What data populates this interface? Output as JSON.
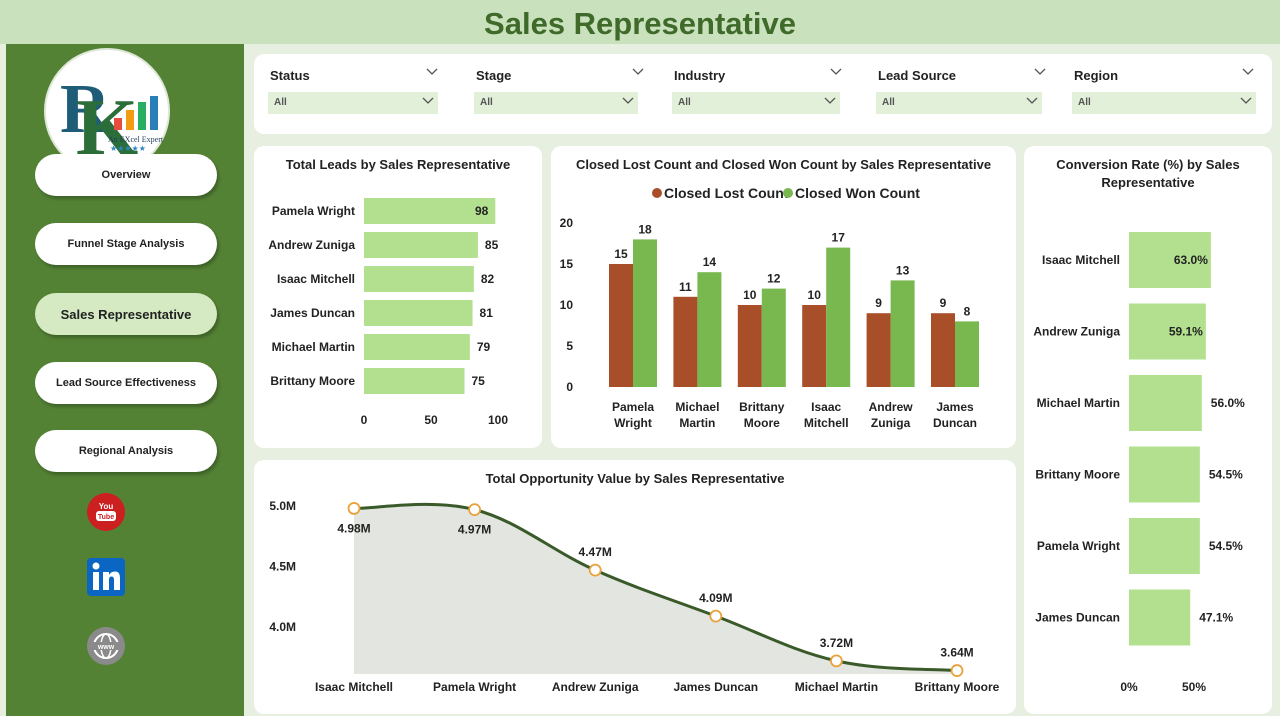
{
  "header": {
    "title": "Sales Representative"
  },
  "logo": {
    "text": "An EXcel Expert"
  },
  "nav": {
    "items": [
      {
        "label": "Overview"
      },
      {
        "label": "Funnel Stage Analysis"
      },
      {
        "label": "Sales Representative"
      },
      {
        "label": "Lead Source Effectiveness"
      },
      {
        "label": "Regional Analysis"
      }
    ]
  },
  "social": {
    "youtube": "youtube-icon",
    "linkedin": "linkedin-icon",
    "web": "globe-icon"
  },
  "filters": [
    {
      "label": "Status",
      "value": "All"
    },
    {
      "label": "Stage",
      "value": "All"
    },
    {
      "label": "Industry",
      "value": "All"
    },
    {
      "label": "Lead Source",
      "value": "All"
    },
    {
      "label": "Region",
      "value": "All"
    }
  ],
  "colors": {
    "accent": "#548235",
    "bar_light": "#b2e08f",
    "lost": "#a84f2a",
    "won": "#79b84f",
    "line": "#3a5a2a",
    "marker": "#e9a23b"
  },
  "chart_data": [
    {
      "type": "bar",
      "orientation": "horizontal",
      "title": "Total Leads by Sales Representative",
      "categories": [
        "Pamela Wright",
        "Andrew Zuniga",
        "Isaac Mitchell",
        "James Duncan",
        "Michael Martin",
        "Brittany Moore"
      ],
      "values": [
        98,
        85,
        82,
        81,
        79,
        75
      ],
      "xlim": [
        0,
        100
      ],
      "xticks": [
        "0",
        "50",
        "100"
      ]
    },
    {
      "type": "bar",
      "title": "Closed Lost Count and Closed Won Count by Sales Representative",
      "categories": [
        "Pamela Wright",
        "Michael Martin",
        "Brittany Moore",
        "Isaac Mitchell",
        "Andrew Zuniga",
        "James Duncan"
      ],
      "series": [
        {
          "name": "Closed Lost Count",
          "values": [
            15,
            11,
            10,
            10,
            9,
            9
          ]
        },
        {
          "name": "Closed Won Count",
          "values": [
            18,
            14,
            12,
            17,
            13,
            8
          ]
        }
      ],
      "ylim": [
        0,
        20
      ],
      "yticks": [
        "0",
        "5",
        "10",
        "15",
        "20"
      ],
      "legend": "top"
    },
    {
      "type": "bar",
      "orientation": "horizontal",
      "title": "Conversion Rate (%) by Sales Representative",
      "categories": [
        "Isaac Mitchell",
        "Andrew Zuniga",
        "Michael Martin",
        "Brittany Moore",
        "Pamela Wright",
        "James Duncan"
      ],
      "values": [
        63.0,
        59.1,
        56.0,
        54.5,
        54.5,
        47.1
      ],
      "labels": [
        "63.0%",
        "59.1%",
        "56.0%",
        "54.5%",
        "54.5%",
        "47.1%"
      ],
      "xlim": [
        0,
        100
      ],
      "xticks": [
        "0%",
        "50%"
      ]
    },
    {
      "type": "area",
      "title": "Total Opportunity Value by Sales Representative",
      "categories": [
        "Isaac Mitchell",
        "Pamela Wright",
        "Andrew Zuniga",
        "James Duncan",
        "Michael Martin",
        "Brittany Moore"
      ],
      "values": [
        4.98,
        4.97,
        4.47,
        4.09,
        3.72,
        3.64
      ],
      "labels": [
        "4.98M",
        "4.97M",
        "4.47M",
        "4.09M",
        "3.72M",
        "3.64M"
      ],
      "ylim": [
        3.6,
        5.0
      ],
      "yticks": [
        "4.0M",
        "4.5M",
        "5.0M"
      ],
      "ytick_values": [
        4.0,
        4.5,
        5.0
      ]
    }
  ]
}
